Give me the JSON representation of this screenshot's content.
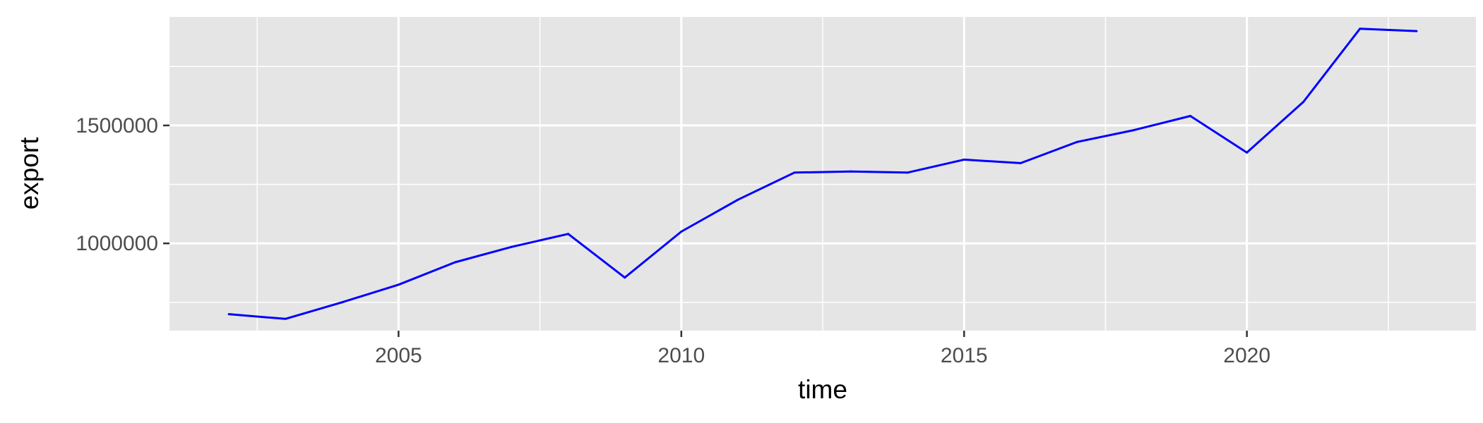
{
  "chart_data": {
    "type": "line",
    "title": "",
    "xlabel": "time",
    "ylabel": "export",
    "xlim": [
      2000.95,
      2024.05
    ],
    "ylim": [
      630000,
      1960000
    ],
    "x_major_ticks": [
      2005,
      2010,
      2015,
      2020
    ],
    "x_minor_ticks": [
      2002.5,
      2007.5,
      2012.5,
      2017.5,
      2022.5
    ],
    "y_major_ticks": [
      1000000,
      1500000
    ],
    "y_minor_ticks": [
      750000,
      1250000,
      1750000
    ],
    "x_tick_labels": [
      "2005",
      "2010",
      "2015",
      "2020"
    ],
    "y_tick_labels": [
      "1000000",
      "1500000"
    ],
    "grid": true,
    "legend": "none",
    "colors": {
      "line": "#0000ff",
      "panel": "#e5e5e5",
      "grid": "#ffffff"
    },
    "series": [
      {
        "x": [
          2002,
          2003,
          2004,
          2005,
          2006,
          2007,
          2008,
          2009,
          2010,
          2011,
          2012,
          2013,
          2014,
          2015,
          2016,
          2017,
          2018,
          2019,
          2020,
          2021,
          2022,
          2023
        ],
        "values": [
          700000,
          680000,
          750000,
          825000,
          920000,
          985000,
          1040000,
          855000,
          1050000,
          1185000,
          1300000,
          1305000,
          1300000,
          1355000,
          1340000,
          1430000,
          1480000,
          1540000,
          1385000,
          1600000,
          1910000,
          1900000
        ]
      }
    ]
  }
}
